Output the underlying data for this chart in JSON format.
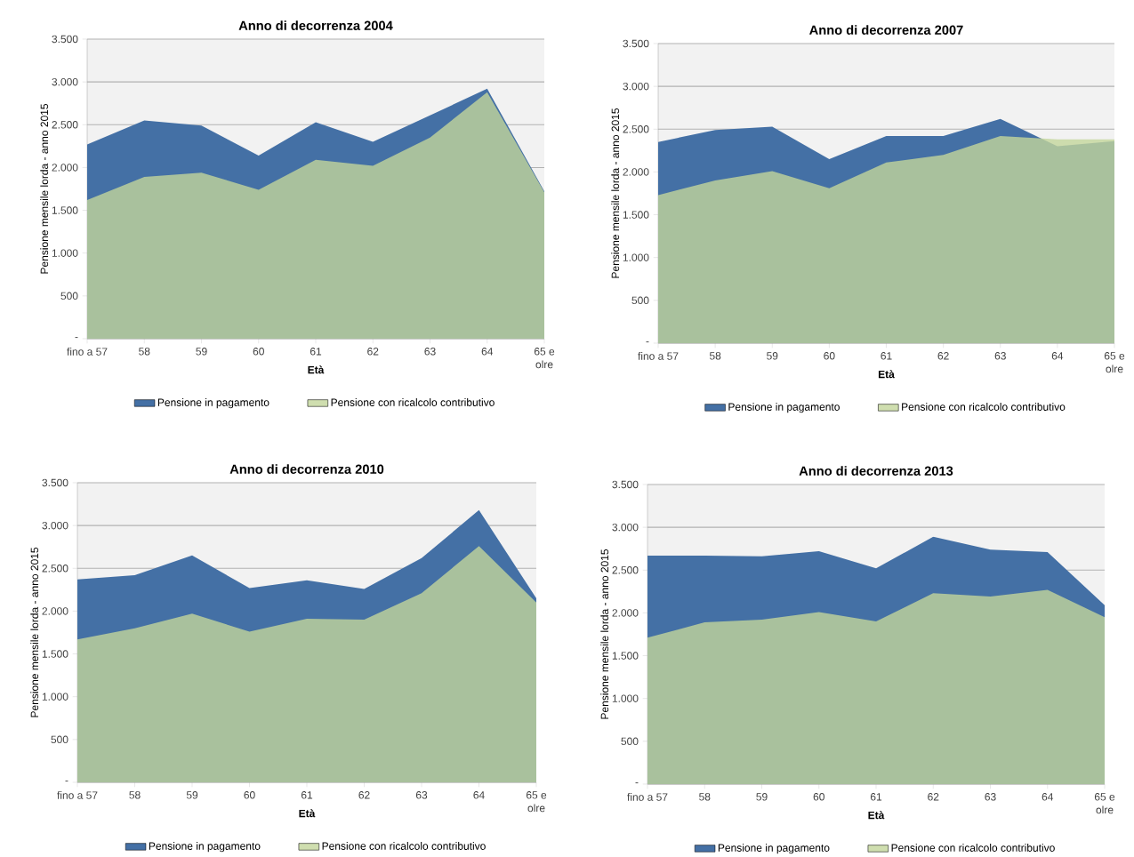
{
  "chart_data": [
    {
      "type": "area",
      "title": "Anno di decorrenza 2004",
      "xlabel": "Età",
      "ylabel": "Pensione mensile lorda - anno 2015",
      "categories": [
        "fino a 57",
        "58",
        "59",
        "60",
        "61",
        "62",
        "63",
        "64",
        "65 e olre"
      ],
      "series": [
        {
          "name": "Pensione in pagamento",
          "color": "#4470a5",
          "values": [
            2270,
            2550,
            2490,
            2140,
            2530,
            2300,
            2610,
            2920,
            1720
          ]
        },
        {
          "name": "Pensione con ricalcolo contributivo",
          "color": "#c3d69b",
          "values": [
            1620,
            1890,
            1940,
            1740,
            2090,
            2020,
            2350,
            2880,
            1710
          ]
        }
      ],
      "ylim": [
        0,
        3500
      ],
      "yticks": [
        {
          "value": 0,
          "label": "-"
        },
        500,
        {
          "value": 1000,
          "label": "1.000"
        },
        {
          "value": 1500,
          "label": "1.500"
        },
        {
          "value": 2000,
          "label": "2.000"
        },
        {
          "value": 2500,
          "label": "2.500"
        },
        {
          "value": 3000,
          "label": "3.000"
        },
        {
          "value": 3500,
          "label": "3.500"
        }
      ],
      "grid": "y",
      "legend": "bottom"
    },
    {
      "type": "area",
      "title": "Anno di decorrenza 2007",
      "xlabel": "Età",
      "ylabel": "Pensione mensile lorda - anno 2015",
      "categories": [
        "fino a 57",
        "58",
        "59",
        "60",
        "61",
        "62",
        "63",
        "64",
        "65 e olre"
      ],
      "series": [
        {
          "name": "Pensione in pagamento",
          "color": "#4470a5",
          "values": [
            2350,
            2490,
            2530,
            2150,
            2420,
            2420,
            2620,
            2300,
            2360
          ]
        },
        {
          "name": "Pensione con ricalcolo contributivo",
          "color": "#c3d69b",
          "values": [
            1730,
            1900,
            2010,
            1810,
            2110,
            2200,
            2420,
            2380,
            2380
          ]
        }
      ],
      "ylim": [
        0,
        3500
      ],
      "yticks": [
        {
          "value": 0,
          "label": "-"
        },
        500,
        {
          "value": 1000,
          "label": "1.000"
        },
        {
          "value": 1500,
          "label": "1.500"
        },
        {
          "value": 2000,
          "label": "2.000"
        },
        {
          "value": 2500,
          "label": "2.500"
        },
        {
          "value": 3000,
          "label": "3.000"
        },
        {
          "value": 3500,
          "label": "3.500"
        }
      ],
      "grid": "y",
      "legend": "bottom"
    },
    {
      "type": "area",
      "title": "Anno di decorrenza 2010",
      "xlabel": "Età",
      "ylabel": "Pensione mensile lorda - anno 2015",
      "categories": [
        "fino a 57",
        "58",
        "59",
        "60",
        "61",
        "62",
        "63",
        "64",
        "65 e olre"
      ],
      "series": [
        {
          "name": "Pensione in pagamento",
          "color": "#4470a5",
          "values": [
            2370,
            2420,
            2650,
            2270,
            2360,
            2260,
            2620,
            3180,
            2150
          ]
        },
        {
          "name": "Pensione con ricalcolo contributivo",
          "color": "#c3d69b",
          "values": [
            1670,
            1800,
            1970,
            1760,
            1910,
            1900,
            2210,
            2760,
            2100
          ]
        }
      ],
      "ylim": [
        0,
        3500
      ],
      "yticks": [
        {
          "value": 0,
          "label": "-"
        },
        500,
        {
          "value": 1000,
          "label": "1.000"
        },
        {
          "value": 1500,
          "label": "1.500"
        },
        {
          "value": 2000,
          "label": "2.000"
        },
        {
          "value": 2500,
          "label": "2.500"
        },
        {
          "value": 3000,
          "label": "3.000"
        },
        {
          "value": 3500,
          "label": "3.500"
        }
      ],
      "grid": "y",
      "legend": "bottom"
    },
    {
      "type": "area",
      "title": "Anno di decorrenza 2013",
      "xlabel": "Età",
      "ylabel": "Pensione mensile lorda - anno 2015",
      "categories": [
        "fino a 57",
        "58",
        "59",
        "60",
        "61",
        "62",
        "63",
        "64",
        "65 e olre"
      ],
      "series": [
        {
          "name": "Pensione in pagamento",
          "color": "#4470a5",
          "values": [
            2670,
            2670,
            2660,
            2720,
            2520,
            2890,
            2740,
            2710,
            2090
          ]
        },
        {
          "name": "Pensione con ricalcolo contributivo",
          "color": "#c3d69b",
          "values": [
            1710,
            1890,
            1920,
            2010,
            1900,
            2230,
            2190,
            2270,
            1950
          ]
        }
      ],
      "ylim": [
        0,
        3500
      ],
      "yticks": [
        {
          "value": 0,
          "label": "-"
        },
        500,
        {
          "value": 1000,
          "label": "1.000"
        },
        {
          "value": 1500,
          "label": "1.500"
        },
        {
          "value": 2000,
          "label": "2.000"
        },
        {
          "value": 2500,
          "label": "2.500"
        },
        {
          "value": 3000,
          "label": "3.000"
        },
        {
          "value": 3500,
          "label": "3.500"
        }
      ],
      "grid": "y",
      "legend": "bottom"
    }
  ]
}
